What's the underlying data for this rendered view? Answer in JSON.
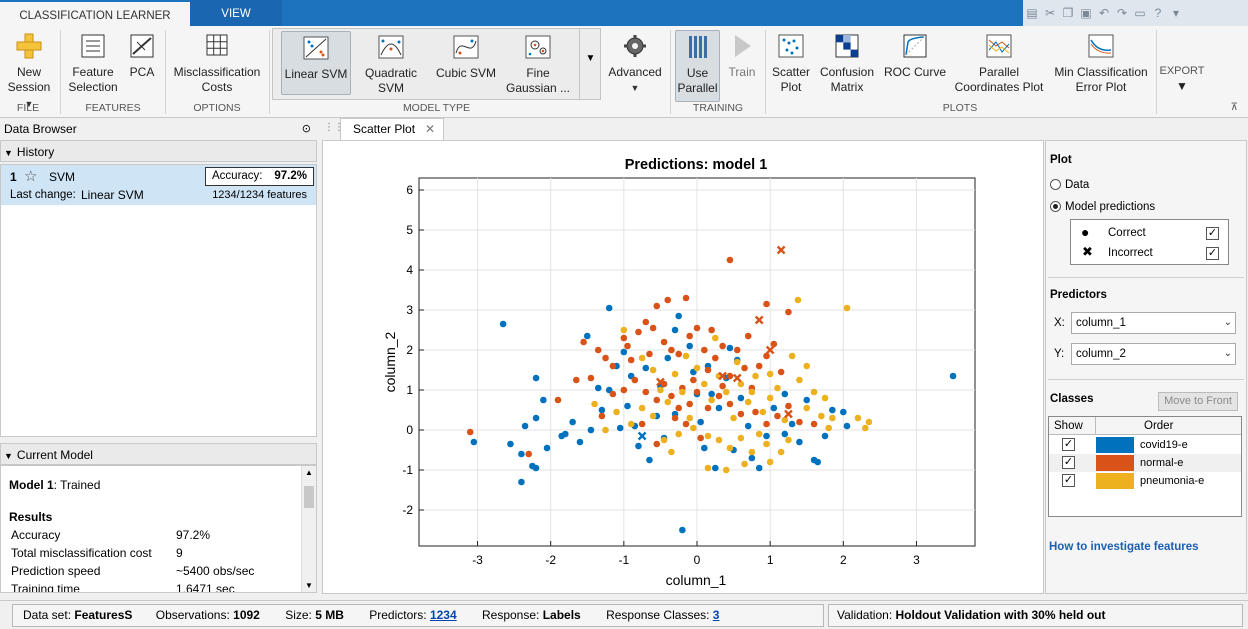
{
  "tabs": {
    "classification": "CLASSIFICATION LEARNER",
    "view": "VIEW"
  },
  "ribbon": {
    "new_session": "New\nSession",
    "file_group": "FILE",
    "feature_selection": "Feature\nSelection",
    "pca": "PCA",
    "features_group": "FEATURES",
    "misclassification_costs": "Misclassification\nCosts",
    "options_group": "OPTIONS",
    "linear_svm": "Linear SVM",
    "quadratic_svm": "Quadratic\nSVM",
    "cubic_svm": "Cubic SVM",
    "fine_gaussian": "Fine\nGaussian ...",
    "model_type_group": "MODEL TYPE",
    "advanced": "Advanced",
    "use_parallel": "Use\nParallel",
    "train": "Train",
    "training_group": "TRAINING",
    "scatter_plot": "Scatter\nPlot",
    "confusion_matrix": "Confusion\nMatrix",
    "roc_curve": "ROC Curve",
    "parallel_coords": "Parallel\nCoordinates Plot",
    "min_class_error": "Min Classification\nError Plot",
    "plots_group": "PLOTS",
    "export": "EXPORT"
  },
  "data_browser": {
    "title": "Data Browser"
  },
  "history": {
    "title": "History",
    "model_num": "1",
    "model_name": "SVM",
    "accuracy_label": "Accuracy:",
    "accuracy_value": "97.2%",
    "last_change_label": "Last change:",
    "last_change_value": "Linear SVM",
    "features": "1234/1234 features"
  },
  "current_model": {
    "title": "Current Model",
    "model_label": "Model 1",
    "model_status": ": Trained",
    "results_heading": "Results",
    "rows": [
      {
        "k": "Accuracy",
        "v": "97.2%"
      },
      {
        "k": "Total misclassification cost",
        "v": "9"
      },
      {
        "k": "Prediction speed",
        "v": "~5400 obs/sec"
      },
      {
        "k": "Training time",
        "v": "1.6471 sec"
      }
    ]
  },
  "doc_tab": {
    "label": "Scatter Plot"
  },
  "chart_data": {
    "type": "scatter",
    "title": "Predictions: model 1",
    "xlabel": "column_1",
    "ylabel": "column_2",
    "xlim": [
      -3.8,
      3.8
    ],
    "ylim": [
      -2.9,
      6.3
    ],
    "xticks": [
      -3,
      -2,
      -1,
      0,
      1,
      2,
      3
    ],
    "yticks": [
      -2,
      -1,
      0,
      1,
      2,
      3,
      4,
      5,
      6
    ],
    "grid": true,
    "colors": {
      "covid19-e": "#0072bd",
      "normal-e": "#d95319",
      "pneumonia-e": "#edb120"
    },
    "series": [
      {
        "name": "covid19-e",
        "correct": [
          [
            -2.65,
            2.65
          ],
          [
            -1.2,
            3.05
          ],
          [
            -1.5,
            2.35
          ],
          [
            -2.2,
            1.3
          ],
          [
            -2.1,
            0.75
          ],
          [
            -2.2,
            0.3
          ],
          [
            -2.35,
            0.1
          ],
          [
            -2.55,
            -0.35
          ],
          [
            -2.4,
            -1.3
          ],
          [
            -2.2,
            -0.95
          ],
          [
            -3.05,
            -0.3
          ],
          [
            -2.4,
            -0.6
          ],
          [
            -2.05,
            -0.45
          ],
          [
            -1.85,
            -0.15
          ],
          [
            -1.7,
            0.2
          ],
          [
            -1.6,
            -0.3
          ],
          [
            -1.45,
            0.0
          ],
          [
            -1.3,
            0.5
          ],
          [
            -1.2,
            1.0
          ],
          [
            -1.1,
            1.6
          ],
          [
            -1.0,
            1.95
          ],
          [
            -0.9,
            1.35
          ],
          [
            -0.95,
            0.6
          ],
          [
            -0.85,
            0.1
          ],
          [
            -0.8,
            -0.4
          ],
          [
            -0.65,
            -0.75
          ],
          [
            -0.55,
            0.35
          ],
          [
            -0.5,
            1.1
          ],
          [
            -0.4,
            1.8
          ],
          [
            -0.3,
            2.5
          ],
          [
            -0.25,
            2.85
          ],
          [
            -0.1,
            2.1
          ],
          [
            -0.05,
            1.45
          ],
          [
            0.0,
            0.9
          ],
          [
            0.05,
            0.2
          ],
          [
            0.1,
            -0.45
          ],
          [
            0.25,
            -0.95
          ],
          [
            0.3,
            0.55
          ],
          [
            0.4,
            1.3
          ],
          [
            0.45,
            2.05
          ],
          [
            0.55,
            1.75
          ],
          [
            0.6,
            0.8
          ],
          [
            0.7,
            0.1
          ],
          [
            0.75,
            -0.7
          ],
          [
            0.85,
            -0.95
          ],
          [
            0.95,
            -0.15
          ],
          [
            1.05,
            0.55
          ],
          [
            1.2,
            0.9
          ],
          [
            1.3,
            0.15
          ],
          [
            1.4,
            -0.3
          ],
          [
            1.5,
            0.75
          ],
          [
            1.6,
            -0.75
          ],
          [
            1.75,
            -0.15
          ],
          [
            1.85,
            0.5
          ],
          [
            2.0,
            0.45
          ],
          [
            2.05,
            0.1
          ],
          [
            -0.2,
            -2.5
          ],
          [
            3.5,
            1.35
          ],
          [
            -0.3,
            0.4
          ],
          [
            0.2,
            0.9
          ],
          [
            -1.05,
            0.05
          ],
          [
            -1.35,
            1.05
          ],
          [
            -0.7,
            1.55
          ],
          [
            0.5,
            -0.5
          ],
          [
            -1.8,
            -0.1
          ],
          [
            1.65,
            -0.8
          ],
          [
            -2.25,
            -0.9
          ],
          [
            1.2,
            -0.1
          ],
          [
            -0.45,
            -0.2
          ],
          [
            0.15,
            1.6
          ]
        ]
      },
      {
        "name": "normal-e",
        "correct": [
          [
            -3.1,
            -0.05
          ],
          [
            -2.3,
            -0.6
          ],
          [
            -1.55,
            2.2
          ],
          [
            -1.35,
            2.0
          ],
          [
            -1.25,
            1.8
          ],
          [
            -1.15,
            1.6
          ],
          [
            -1.0,
            2.3
          ],
          [
            -0.95,
            2.1
          ],
          [
            -0.9,
            1.75
          ],
          [
            -0.8,
            2.45
          ],
          [
            -0.7,
            2.7
          ],
          [
            -0.6,
            2.55
          ],
          [
            -0.55,
            3.1
          ],
          [
            -0.45,
            2.2
          ],
          [
            -0.35,
            2.0
          ],
          [
            -0.25,
            1.9
          ],
          [
            -0.15,
            3.3
          ],
          [
            -0.1,
            2.35
          ],
          [
            0.0,
            2.55
          ],
          [
            0.1,
            2.0
          ],
          [
            0.15,
            1.5
          ],
          [
            0.25,
            1.8
          ],
          [
            0.35,
            2.1
          ],
          [
            0.45,
            1.35
          ],
          [
            0.55,
            2.0
          ],
          [
            0.65,
            1.55
          ],
          [
            0.85,
            1.6
          ],
          [
            0.95,
            1.85
          ],
          [
            1.05,
            2.15
          ],
          [
            1.15,
            1.45
          ],
          [
            0.45,
            4.25
          ],
          [
            0.95,
            3.15
          ],
          [
            1.25,
            2.95
          ],
          [
            -1.15,
            0.9
          ],
          [
            -1.0,
            1.0
          ],
          [
            -0.85,
            1.25
          ],
          [
            -0.7,
            0.95
          ],
          [
            -0.55,
            0.75
          ],
          [
            -0.45,
            1.15
          ],
          [
            -0.35,
            0.85
          ],
          [
            -0.2,
            1.05
          ],
          [
            -0.1,
            0.65
          ],
          [
            0.0,
            0.95
          ],
          [
            0.15,
            0.55
          ],
          [
            0.3,
            0.85
          ],
          [
            0.45,
            0.65
          ],
          [
            0.6,
            0.4
          ],
          [
            0.8,
            0.45
          ],
          [
            0.95,
            0.15
          ],
          [
            1.1,
            0.35
          ],
          [
            1.25,
            0.6
          ],
          [
            1.4,
            0.2
          ],
          [
            -0.3,
            0.3
          ],
          [
            -0.15,
            0.15
          ],
          [
            0.05,
            -0.2
          ],
          [
            -0.55,
            -0.35
          ],
          [
            -0.75,
            0.15
          ],
          [
            -1.45,
            1.3
          ],
          [
            -1.65,
            1.25
          ],
          [
            -1.3,
            0.35
          ],
          [
            0.7,
            2.35
          ],
          [
            -0.05,
            1.25
          ],
          [
            0.35,
            1.1
          ],
          [
            1.6,
            0.15
          ],
          [
            -0.4,
            3.25
          ],
          [
            0.2,
            2.5
          ],
          [
            -0.65,
            1.9
          ],
          [
            -0.25,
            0.55
          ],
          [
            0.75,
            1.05
          ],
          [
            -1.9,
            0.75
          ]
        ]
      },
      {
        "name": "pneumonia-e",
        "correct": [
          [
            -1.0,
            2.5
          ],
          [
            -0.75,
            1.8
          ],
          [
            -0.6,
            1.5
          ],
          [
            -0.5,
            1.0
          ],
          [
            -0.4,
            0.7
          ],
          [
            -0.3,
            1.4
          ],
          [
            -0.2,
            0.95
          ],
          [
            -0.1,
            0.3
          ],
          [
            0.0,
            1.55
          ],
          [
            0.1,
            1.15
          ],
          [
            0.2,
            0.75
          ],
          [
            0.3,
            1.35
          ],
          [
            0.4,
            0.95
          ],
          [
            0.5,
            0.3
          ],
          [
            0.6,
            1.15
          ],
          [
            0.7,
            0.7
          ],
          [
            0.8,
            1.35
          ],
          [
            0.9,
            0.45
          ],
          [
            1.0,
            0.8
          ],
          [
            1.1,
            1.05
          ],
          [
            1.2,
            0.25
          ],
          [
            1.3,
            1.85
          ],
          [
            1.4,
            1.25
          ],
          [
            1.5,
            0.55
          ],
          [
            1.6,
            0.95
          ],
          [
            1.75,
            0.8
          ],
          [
            1.85,
            0.3
          ],
          [
            2.05,
            3.05
          ],
          [
            2.2,
            0.3
          ],
          [
            2.35,
            0.2
          ],
          [
            2.3,
            0.05
          ],
          [
            1.8,
            0.05
          ],
          [
            1.38,
            3.25
          ],
          [
            0.15,
            -0.15
          ],
          [
            0.3,
            -0.25
          ],
          [
            0.45,
            -0.45
          ],
          [
            0.6,
            -0.2
          ],
          [
            0.75,
            -0.55
          ],
          [
            0.85,
            -0.1
          ],
          [
            1.0,
            -0.8
          ],
          [
            1.15,
            -0.55
          ],
          [
            1.25,
            -0.25
          ],
          [
            0.15,
            -0.95
          ],
          [
            0.4,
            -1.0
          ],
          [
            0.65,
            -0.85
          ],
          [
            -0.05,
            0.05
          ],
          [
            -0.25,
            -0.1
          ],
          [
            -0.45,
            -0.25
          ],
          [
            -0.6,
            0.35
          ],
          [
            -0.75,
            0.55
          ],
          [
            -0.9,
            0.15
          ],
          [
            -1.1,
            0.45
          ],
          [
            -1.25,
            0.0
          ],
          [
            -1.4,
            0.65
          ],
          [
            0.55,
            1.7
          ],
          [
            0.25,
            2.3
          ],
          [
            -0.15,
            1.85
          ],
          [
            1.0,
            1.4
          ],
          [
            1.5,
            1.6
          ],
          [
            0.95,
            -0.35
          ],
          [
            -0.35,
            -0.55
          ],
          [
            0.75,
            0.95
          ],
          [
            1.7,
            0.35
          ]
        ]
      }
    ],
    "incorrect": [
      {
        "cls": "normal-e",
        "x": 1.15,
        "y": 4.5
      },
      {
        "cls": "normal-e",
        "x": 0.85,
        "y": 2.75
      },
      {
        "cls": "normal-e",
        "x": 1.0,
        "y": 2.0
      },
      {
        "cls": "normal-e",
        "x": 1.25,
        "y": 0.4
      },
      {
        "cls": "normal-e",
        "x": -0.5,
        "y": 1.2
      },
      {
        "cls": "normal-e",
        "x": 0.55,
        "y": 1.3
      },
      {
        "cls": "normal-e",
        "x": 0.35,
        "y": 1.35
      },
      {
        "cls": "covid19-e",
        "x": -0.75,
        "y": -0.15
      }
    ]
  },
  "plot_panel": {
    "heading": "Plot",
    "data_label": "Data",
    "model_predictions_label": "Model predictions",
    "correct_label": "Correct",
    "incorrect_label": "Incorrect",
    "predictors_heading": "Predictors",
    "x_label": "X:",
    "x_value": "column_1",
    "y_label": "Y:",
    "y_value": "column_2",
    "classes_heading": "Classes",
    "move_to_front": "Move to Front",
    "show_header": "Show",
    "order_header": "Order",
    "classes": [
      {
        "name": "covid19-e",
        "color": "#0072bd"
      },
      {
        "name": "normal-e",
        "color": "#d95319"
      },
      {
        "name": "pneumonia-e",
        "color": "#edb120"
      }
    ],
    "help_link": "How to investigate features"
  },
  "status": {
    "dataset_label": "Data set:",
    "dataset_value": "FeaturesS",
    "obs_label": "Observations:",
    "obs_value": "1092",
    "size_label": "Size:",
    "size_value": "5 MB",
    "predictors_label": "Predictors:",
    "predictors_value": "1234",
    "response_label": "Response:",
    "response_value": "Labels",
    "classes_label": "Response Classes:",
    "classes_value": "3",
    "validation_label": "Validation:",
    "validation_value": "Holdout Validation with 30% held out"
  }
}
